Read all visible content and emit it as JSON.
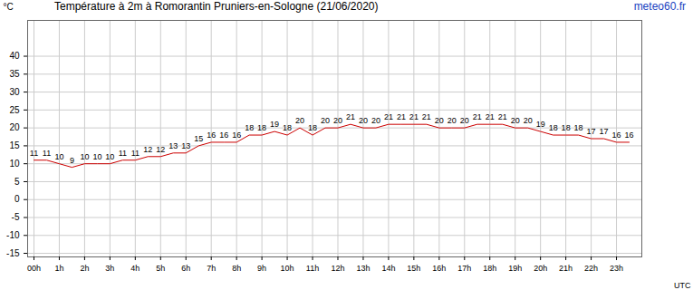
{
  "chart_data": {
    "type": "line",
    "title": "Température à 2m à Romorantin Pruniers-en-Sologne (21/06/2020)",
    "source": "meteo60.fr",
    "x_label": "UTC",
    "y_label": "°C",
    "x": [
      0,
      0.5,
      1,
      1.5,
      2,
      2.5,
      3,
      3.5,
      4,
      4.5,
      5,
      5.5,
      6,
      6.5,
      7,
      7.5,
      8,
      8.5,
      9,
      9.5,
      10,
      10.5,
      11,
      11.5,
      12,
      12.5,
      13,
      13.5,
      14,
      14.5,
      15,
      15.5,
      16,
      16.5,
      17,
      17.5,
      18,
      18.5,
      19,
      19.5,
      20,
      20.5,
      21,
      21.5,
      22,
      22.5,
      23,
      23.5
    ],
    "values": [
      11,
      11,
      10,
      9,
      10,
      10,
      10,
      11,
      11,
      12,
      12,
      13,
      13,
      15,
      16,
      16,
      16,
      18,
      18,
      19,
      18,
      20,
      18,
      20,
      20,
      21,
      20,
      20,
      21,
      21,
      21,
      21,
      20,
      20,
      20,
      21,
      21,
      21,
      20,
      20,
      19,
      18,
      18,
      18,
      17,
      17,
      16,
      16
    ],
    "color": "#cc0000",
    "xlim": [
      -0.25,
      24
    ],
    "ylim": [
      -16,
      50
    ],
    "xticks": [
      {
        "value": 0,
        "label": "00h"
      },
      {
        "value": 1,
        "label": "1h"
      },
      {
        "value": 2,
        "label": "2h"
      },
      {
        "value": 3,
        "label": "3h"
      },
      {
        "value": 4,
        "label": "4h"
      },
      {
        "value": 5,
        "label": "5h"
      },
      {
        "value": 6,
        "label": "6h"
      },
      {
        "value": 7,
        "label": "7h"
      },
      {
        "value": 8,
        "label": "8h"
      },
      {
        "value": 9,
        "label": "9h"
      },
      {
        "value": 10,
        "label": "10h"
      },
      {
        "value": 11,
        "label": "11h"
      },
      {
        "value": 12,
        "label": "12h"
      },
      {
        "value": 13,
        "label": "13h"
      },
      {
        "value": 14,
        "label": "14h"
      },
      {
        "value": 15,
        "label": "15h"
      },
      {
        "value": 16,
        "label": "16h"
      },
      {
        "value": 17,
        "label": "17h"
      },
      {
        "value": 18,
        "label": "18h"
      },
      {
        "value": 19,
        "label": "19h"
      },
      {
        "value": 20,
        "label": "20h"
      },
      {
        "value": 21,
        "label": "21h"
      },
      {
        "value": 22,
        "label": "22h"
      },
      {
        "value": 23,
        "label": "23h"
      }
    ],
    "yticks": [
      -15,
      -10,
      -5,
      0,
      5,
      10,
      15,
      20,
      25,
      30,
      35,
      40
    ],
    "grid": true,
    "data_labels": true
  }
}
